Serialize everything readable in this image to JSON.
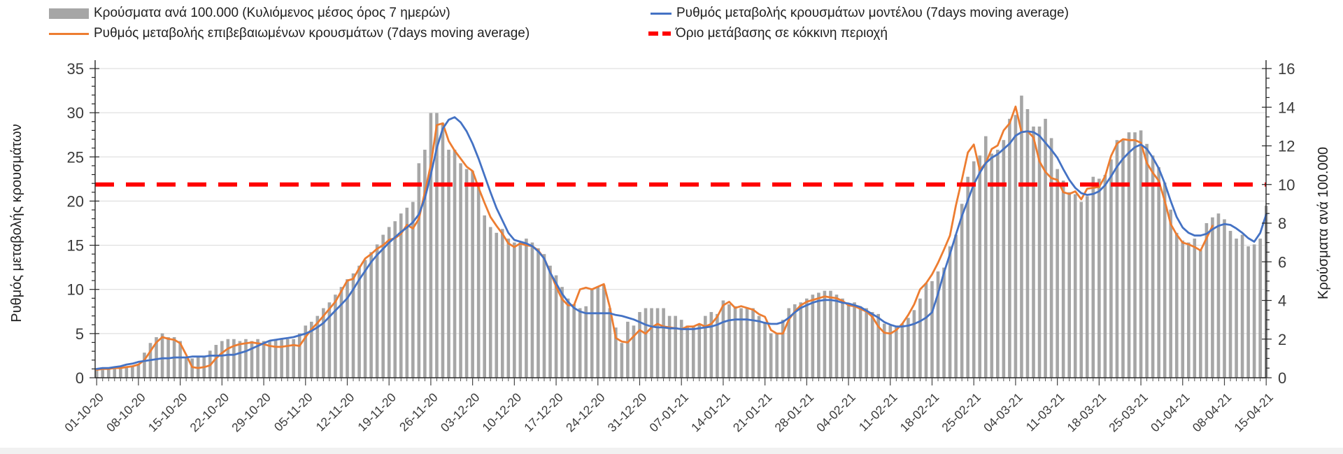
{
  "legend": {
    "bars_label": "Κρούσματα ανά 100.000 (Κυλιόμενος μέσος όρος 7 ημερών)",
    "confirmed_label": "Ρυθμός μεταβολής επιβεβαιωμένων κρουσμάτων (7days moving average)",
    "model_label": "Ρυθμός μεταβολής κρουσμάτων μοντέλου (7days moving average)",
    "threshold_label": "Όριο μετάβασης σε κόκκινη περιοχή"
  },
  "axes": {
    "left_title": "Ρυθμός μεταβολής κρουσμάτων",
    "right_title": "Κρούσματα ανά 100.000",
    "left_ticks": [
      0,
      5,
      10,
      15,
      20,
      25,
      30,
      35
    ],
    "right_ticks": [
      0,
      2,
      4,
      6,
      8,
      10,
      12,
      14,
      16
    ],
    "x_labels": [
      "01-10-20",
      "08-10-20",
      "15-10-20",
      "22-10-20",
      "29-10-20",
      "05-11-20",
      "12-11-20",
      "19-11-20",
      "26-11-20",
      "03-12-20",
      "10-12-20",
      "17-12-20",
      "24-12-20",
      "31-12-20",
      "07-01-21",
      "14-01-21",
      "21-01-21",
      "28-01-21",
      "04-02-21",
      "11-02-21",
      "18-02-21",
      "25-02-21",
      "04-03-21",
      "11-03-21",
      "18-03-21",
      "25-03-21",
      "01-04-21",
      "08-04-21",
      "15-04-21"
    ]
  },
  "colors": {
    "bars": "#A6A6A6",
    "confirmed": "#ED7D31",
    "model": "#4472C4",
    "threshold": "#FF0000",
    "grid": "#D9D9D9",
    "axis": "#404040",
    "tick_text": "#3b3b3b"
  },
  "chart_data": {
    "type": "bar",
    "note": "daily values 01-10-20 .. 15-04-21, 197 days; bars on right axis, lines on left axis",
    "x_start": "01-10-20",
    "x_end": "15-04-21",
    "days": 197,
    "left_range": [
      0,
      35
    ],
    "right_range": [
      0,
      16
    ],
    "threshold_value_right_axis": 10,
    "series": [
      {
        "name": "Κρούσματα ανά 100.000 (Κυλιόμενος μέσος όρος 7 ημερών)",
        "type": "bar",
        "axis": "right",
        "values": [
          0.5,
          0.5,
          0.5,
          0.5,
          0.5,
          0.6,
          0.6,
          0.7,
          1.3,
          1.8,
          2.1,
          2.3,
          2.1,
          2.1,
          1.9,
          1.1,
          1.0,
          1.1,
          1.1,
          1.4,
          1.7,
          1.9,
          2.0,
          2.0,
          1.9,
          2.0,
          1.9,
          2.0,
          1.9,
          1.9,
          2.0,
          2.0,
          2.0,
          2.0,
          2.3,
          2.7,
          2.9,
          3.2,
          3.6,
          3.9,
          4.3,
          4.7,
          5.1,
          5.4,
          5.8,
          6.1,
          6.5,
          6.9,
          7.4,
          7.8,
          8.1,
          8.5,
          8.8,
          9.1,
          11.1,
          11.8,
          13.7,
          13.7,
          13.2,
          11.8,
          11.8,
          11.1,
          10.8,
          10.7,
          9.9,
          8.4,
          7.8,
          7.5,
          7.7,
          7.2,
          7.0,
          7.0,
          7.2,
          7.0,
          6.7,
          6.4,
          5.8,
          5.3,
          4.7,
          4.1,
          3.8,
          3.6,
          3.7,
          4.6,
          4.7,
          4.8,
          3.6,
          2.6,
          1.8,
          2.9,
          2.7,
          3.4,
          3.6,
          3.6,
          3.6,
          3.6,
          3.2,
          3.2,
          3.0,
          2.7,
          2.7,
          2.8,
          3.2,
          3.4,
          3.3,
          4.0,
          3.8,
          3.7,
          3.6,
          3.6,
          3.6,
          3.2,
          2.9,
          2.3,
          2.3,
          3.0,
          3.6,
          3.8,
          3.9,
          4.1,
          4.3,
          4.4,
          4.5,
          4.5,
          4.3,
          4.1,
          3.8,
          3.9,
          3.7,
          3.6,
          3.4,
          3.3,
          2.8,
          2.7,
          2.7,
          2.8,
          3.1,
          3.5,
          4.1,
          4.9,
          5.0,
          5.5,
          5.7,
          6.8,
          7.4,
          9.0,
          10.4,
          11.2,
          11.5,
          12.5,
          11.6,
          11.8,
          12.3,
          13.4,
          13.6,
          14.6,
          13.9,
          13.0,
          13.0,
          13.4,
          12.4,
          10.8,
          10.2,
          9.6,
          9.5,
          9.1,
          9.4,
          10.4,
          10.3,
          10.5,
          11.3,
          12.3,
          12.3,
          12.7,
          12.7,
          12.8,
          12.1,
          11.5,
          10.9,
          10.1,
          8.7,
          7.5,
          7.1,
          7.0,
          7.2,
          6.6,
          8.0,
          8.3,
          8.5,
          8.2,
          7.6,
          7.2,
          7.4,
          6.8,
          6.9,
          7.2,
          8.9
        ]
      },
      {
        "name": "Ρυθμός μεταβολής επιβεβαιωμένων κρουσμάτων (7days moving average)",
        "type": "line",
        "axis": "left",
        "values": [
          0.9,
          1.0,
          1.0,
          1.1,
          1.1,
          1.2,
          1.3,
          1.5,
          2.0,
          3.0,
          4.0,
          4.6,
          4.4,
          4.3,
          3.9,
          2.6,
          1.2,
          1.1,
          1.2,
          1.4,
          2.2,
          2.8,
          3.3,
          3.6,
          3.8,
          3.9,
          4.0,
          3.9,
          3.8,
          3.6,
          3.5,
          3.5,
          3.6,
          3.7,
          3.6,
          4.6,
          5.5,
          6.2,
          7.0,
          7.8,
          8.6,
          9.8,
          11.0,
          11.2,
          12.4,
          13.5,
          14.0,
          14.6,
          15.0,
          15.6,
          15.8,
          16.3,
          17.3,
          16.9,
          18.0,
          21.0,
          24.1,
          28.6,
          28.8,
          26.8,
          25.7,
          24.8,
          23.9,
          23.4,
          21.5,
          19.8,
          18.2,
          17.2,
          16.3,
          15.2,
          14.8,
          15.2,
          15.0,
          14.9,
          14.4,
          13.5,
          12.0,
          10.3,
          8.9,
          8.2,
          8.2,
          10.0,
          10.2,
          10.0,
          10.3,
          10.6,
          8.0,
          4.5,
          4.1,
          4.0,
          4.7,
          5.4,
          5.0,
          5.7,
          6.1,
          5.8,
          5.7,
          5.6,
          5.5,
          5.8,
          5.8,
          6.1,
          5.8,
          6.1,
          6.9,
          8.2,
          8.6,
          7.9,
          8.1,
          7.9,
          7.7,
          7.2,
          6.9,
          5.4,
          5.0,
          5.0,
          6.6,
          7.5,
          8.2,
          8.6,
          8.8,
          9.0,
          9.2,
          9.1,
          9.0,
          8.7,
          8.2,
          8.1,
          7.8,
          7.5,
          6.9,
          5.8,
          5.1,
          5.0,
          5.4,
          6.1,
          7.1,
          8.3,
          10.0,
          10.7,
          11.7,
          13.0,
          14.5,
          16.1,
          19.5,
          22.4,
          25.5,
          26.4,
          23.5,
          24.3,
          25.9,
          26.3,
          28.0,
          28.8,
          30.7,
          27.8,
          27.9,
          27.2,
          24.5,
          23.3,
          22.6,
          22.4,
          21.0,
          20.8,
          21.1,
          20.2,
          21.4,
          21.5,
          21.6,
          22.8,
          25.1,
          26.5,
          27.0,
          26.9,
          26.9,
          26.6,
          24.3,
          23.2,
          22.3,
          20.0,
          17.4,
          16.2,
          15.3,
          15.1,
          14.8,
          14.4,
          15.8,
          17.2,
          null,
          null,
          null,
          null,
          null,
          null,
          null,
          null,
          null
        ]
      },
      {
        "name": "Ρυθμός μεταβολής κρουσμάτων μοντέλου (7days moving average)",
        "type": "line",
        "axis": "left",
        "values": [
          1.0,
          1.1,
          1.1,
          1.2,
          1.3,
          1.5,
          1.6,
          1.8,
          1.9,
          2.0,
          2.1,
          2.2,
          2.2,
          2.3,
          2.3,
          2.3,
          2.4,
          2.4,
          2.4,
          2.5,
          2.5,
          2.5,
          2.6,
          2.6,
          2.8,
          3.0,
          3.3,
          3.6,
          3.9,
          4.2,
          4.3,
          4.4,
          4.5,
          4.6,
          4.8,
          5.0,
          5.3,
          5.7,
          6.2,
          6.9,
          7.6,
          8.3,
          9.0,
          10.0,
          11.1,
          12.1,
          13.1,
          13.9,
          14.6,
          15.3,
          15.9,
          16.5,
          17.0,
          17.6,
          18.5,
          20.3,
          23.0,
          26.0,
          28.2,
          29.2,
          29.5,
          28.9,
          27.9,
          26.5,
          24.8,
          22.9,
          21.0,
          19.2,
          17.8,
          16.4,
          15.6,
          15.4,
          15.2,
          14.9,
          14.3,
          13.5,
          11.9,
          10.7,
          9.5,
          8.6,
          7.9,
          7.5,
          7.3,
          7.3,
          7.3,
          7.3,
          7.3,
          7.1,
          7.0,
          6.8,
          6.6,
          6.3,
          6.0,
          5.8,
          5.7,
          5.7,
          5.6,
          5.6,
          5.5,
          5.5,
          5.5,
          5.6,
          5.7,
          5.8,
          6.0,
          6.3,
          6.5,
          6.6,
          6.6,
          6.6,
          6.5,
          6.4,
          6.2,
          6.1,
          6.1,
          6.3,
          6.8,
          7.4,
          7.9,
          8.2,
          8.5,
          8.7,
          8.8,
          8.8,
          8.7,
          8.5,
          8.4,
          8.2,
          8.0,
          7.6,
          7.2,
          6.8,
          6.3,
          6.0,
          5.8,
          5.8,
          5.9,
          6.1,
          6.4,
          6.8,
          7.4,
          9.5,
          11.9,
          14.0,
          16.2,
          18.3,
          20.1,
          21.9,
          23.2,
          24.3,
          24.9,
          25.3,
          25.9,
          26.5,
          27.4,
          27.8,
          27.9,
          27.8,
          27.4,
          26.6,
          25.8,
          24.9,
          23.6,
          22.4,
          21.5,
          20.9,
          20.7,
          20.8,
          21.1,
          21.8,
          22.8,
          23.9,
          24.8,
          25.5,
          26.1,
          26.4,
          25.9,
          24.9,
          23.7,
          22.0,
          20.0,
          18.2,
          17.0,
          16.4,
          16.1,
          16.1,
          16.3,
          16.8,
          17.2,
          17.4,
          17.3,
          16.9,
          16.4,
          15.8,
          15.4,
          16.4,
          18.5
        ]
      }
    ]
  }
}
